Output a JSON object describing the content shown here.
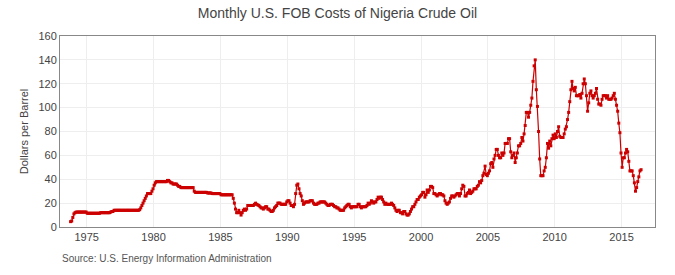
{
  "chart_data": {
    "type": "line",
    "title": "Monthly U.S. FOB Costs of Nigeria Crude Oil",
    "ylabel": "Dollars per Barrel",
    "annotations": [
      "Source: U.S. Energy Information Administration"
    ],
    "color": "#cc0000",
    "marker": "square",
    "line_style": "solid",
    "grid": true,
    "xlim": [
      1973.0,
      2017.5
    ],
    "xticks": [
      1975,
      1980,
      1985,
      1990,
      1995,
      2000,
      2005,
      2010,
      2015
    ],
    "ylim": [
      0,
      160
    ],
    "yticks": [
      0,
      20,
      40,
      60,
      80,
      100,
      120,
      140,
      160
    ],
    "x": [
      1973.791667,
      1973.875,
      1973.958333,
      1974.041667,
      1974.125,
      1974.208333,
      1974.291667,
      1974.375,
      1974.458333,
      1974.541667,
      1974.625,
      1974.708333,
      1974.791667,
      1974.875,
      1974.958333,
      1975.041667,
      1975.125,
      1975.208333,
      1975.291667,
      1975.375,
      1975.458333,
      1975.541667,
      1975.625,
      1975.708333,
      1975.791667,
      1975.875,
      1975.958333,
      1976.041667,
      1976.125,
      1976.208333,
      1976.291667,
      1976.375,
      1976.458333,
      1976.541667,
      1976.625,
      1976.708333,
      1976.791667,
      1976.875,
      1976.958333,
      1977.041667,
      1977.125,
      1977.208333,
      1977.291667,
      1977.375,
      1977.458333,
      1977.541667,
      1977.625,
      1977.708333,
      1977.791667,
      1977.875,
      1977.958333,
      1978.041667,
      1978.125,
      1978.208333,
      1978.291667,
      1978.375,
      1978.458333,
      1978.541667,
      1978.625,
      1978.708333,
      1978.791667,
      1978.875,
      1978.958333,
      1979.041667,
      1979.125,
      1979.208333,
      1979.291667,
      1979.375,
      1979.458333,
      1979.541667,
      1979.625,
      1979.708333,
      1979.791667,
      1979.875,
      1979.958333,
      1980.041667,
      1980.125,
      1980.208333,
      1980.291667,
      1980.375,
      1980.458333,
      1980.541667,
      1980.625,
      1980.708333,
      1980.791667,
      1980.875,
      1980.958333,
      1981.041667,
      1981.125,
      1981.208333,
      1981.291667,
      1981.375,
      1981.458333,
      1981.541667,
      1981.625,
      1981.708333,
      1981.791667,
      1981.875,
      1981.958333,
      1982.041667,
      1982.125,
      1982.208333,
      1982.291667,
      1982.375,
      1982.458333,
      1982.541667,
      1982.625,
      1982.708333,
      1982.791667,
      1982.875,
      1982.958333,
      1983.041667,
      1983.125,
      1983.208333,
      1983.291667,
      1983.375,
      1983.458333,
      1983.541667,
      1983.625,
      1983.708333,
      1983.791667,
      1983.875,
      1983.958333,
      1984.041667,
      1984.125,
      1984.208333,
      1984.291667,
      1984.375,
      1984.458333,
      1984.541667,
      1984.625,
      1984.708333,
      1984.791667,
      1984.875,
      1984.958333,
      1985.041667,
      1985.125,
      1985.208333,
      1985.291667,
      1985.375,
      1985.458333,
      1985.541667,
      1985.625,
      1985.708333,
      1985.791667,
      1985.875,
      1985.958333,
      1986.041667,
      1986.125,
      1986.208333,
      1986.291667,
      1986.375,
      1986.458333,
      1986.541667,
      1986.625,
      1986.708333,
      1986.791667,
      1986.875,
      1986.958333,
      1987.041667,
      1987.125,
      1987.208333,
      1987.291667,
      1987.375,
      1987.458333,
      1987.541667,
      1987.625,
      1987.708333,
      1987.791667,
      1987.875,
      1987.958333,
      1988.041667,
      1988.125,
      1988.208333,
      1988.291667,
      1988.375,
      1988.458333,
      1988.541667,
      1988.625,
      1988.708333,
      1988.791667,
      1988.875,
      1988.958333,
      1989.041667,
      1989.125,
      1989.208333,
      1989.291667,
      1989.375,
      1989.458333,
      1989.541667,
      1989.625,
      1989.708333,
      1989.791667,
      1989.875,
      1989.958333,
      1990.041667,
      1990.125,
      1990.208333,
      1990.291667,
      1990.375,
      1990.458333,
      1990.541667,
      1990.625,
      1990.708333,
      1990.791667,
      1990.875,
      1990.958333,
      1991.041667,
      1991.125,
      1991.208333,
      1991.291667,
      1991.375,
      1991.458333,
      1991.541667,
      1991.625,
      1991.708333,
      1991.791667,
      1991.875,
      1991.958333,
      1992.041667,
      1992.125,
      1992.208333,
      1992.291667,
      1992.375,
      1992.458333,
      1992.541667,
      1992.625,
      1992.708333,
      1992.791667,
      1992.875,
      1992.958333,
      1993.041667,
      1993.125,
      1993.208333,
      1993.291667,
      1993.375,
      1993.458333,
      1993.541667,
      1993.625,
      1993.708333,
      1993.791667,
      1993.875,
      1993.958333,
      1994.041667,
      1994.125,
      1994.208333,
      1994.291667,
      1994.375,
      1994.458333,
      1994.541667,
      1994.625,
      1994.708333,
      1994.791667,
      1994.875,
      1994.958333,
      1995.041667,
      1995.125,
      1995.208333,
      1995.291667,
      1995.375,
      1995.458333,
      1995.541667,
      1995.625,
      1995.708333,
      1995.791667,
      1995.875,
      1995.958333,
      1996.041667,
      1996.125,
      1996.208333,
      1996.291667,
      1996.375,
      1996.458333,
      1996.541667,
      1996.625,
      1996.708333,
      1996.791667,
      1996.875,
      1996.958333,
      1997.041667,
      1997.125,
      1997.208333,
      1997.291667,
      1997.375,
      1997.458333,
      1997.541667,
      1997.625,
      1997.708333,
      1997.791667,
      1997.875,
      1997.958333,
      1998.041667,
      1998.125,
      1998.208333,
      1998.291667,
      1998.375,
      1998.458333,
      1998.541667,
      1998.625,
      1998.708333,
      1998.791667,
      1998.875,
      1998.958333,
      1999.041667,
      1999.125,
      1999.208333,
      1999.291667,
      1999.375,
      1999.458333,
      1999.541667,
      1999.625,
      1999.708333,
      1999.791667,
      1999.875,
      1999.958333,
      2000.041667,
      2000.125,
      2000.208333,
      2000.291667,
      2000.375,
      2000.458333,
      2000.541667,
      2000.625,
      2000.708333,
      2000.791667,
      2000.875,
      2000.958333,
      2001.041667,
      2001.125,
      2001.208333,
      2001.291667,
      2001.375,
      2001.458333,
      2001.541667,
      2001.625,
      2001.708333,
      2001.791667,
      2001.875,
      2001.958333,
      2002.041667,
      2002.125,
      2002.208333,
      2002.291667,
      2002.375,
      2002.458333,
      2002.541667,
      2002.625,
      2002.708333,
      2002.791667,
      2002.875,
      2002.958333,
      2003.041667,
      2003.125,
      2003.208333,
      2003.291667,
      2003.375,
      2003.458333,
      2003.541667,
      2003.625,
      2003.708333,
      2003.791667,
      2003.875,
      2003.958333,
      2004.041667,
      2004.125,
      2004.208333,
      2004.291667,
      2004.375,
      2004.458333,
      2004.541667,
      2004.625,
      2004.708333,
      2004.791667,
      2004.875,
      2004.958333,
      2005.041667,
      2005.125,
      2005.208333,
      2005.291667,
      2005.375,
      2005.458333,
      2005.541667,
      2005.625,
      2005.708333,
      2005.791667,
      2005.875,
      2005.958333,
      2006.041667,
      2006.125,
      2006.208333,
      2006.291667,
      2006.375,
      2006.458333,
      2006.541667,
      2006.625,
      2006.708333,
      2006.791667,
      2006.875,
      2006.958333,
      2007.041667,
      2007.125,
      2007.208333,
      2007.291667,
      2007.375,
      2007.458333,
      2007.541667,
      2007.625,
      2007.708333,
      2007.791667,
      2007.875,
      2007.958333,
      2008.041667,
      2008.125,
      2008.208333,
      2008.291667,
      2008.375,
      2008.458333,
      2008.541667,
      2008.625,
      2008.708333,
      2008.791667,
      2008.875,
      2008.958333,
      2009.041667,
      2009.125,
      2009.208333,
      2009.291667,
      2009.375,
      2009.458333,
      2009.541667,
      2009.625,
      2009.708333,
      2009.791667,
      2009.875,
      2009.958333,
      2010.041667,
      2010.125,
      2010.208333,
      2010.291667,
      2010.375,
      2010.458333,
      2010.541667,
      2010.625,
      2010.708333,
      2010.791667,
      2010.875,
      2010.958333,
      2011.041667,
      2011.125,
      2011.208333,
      2011.291667,
      2011.375,
      2011.458333,
      2011.541667,
      2011.625,
      2011.708333,
      2011.791667,
      2011.875,
      2011.958333,
      2012.041667,
      2012.125,
      2012.208333,
      2012.291667,
      2012.375,
      2012.458333,
      2012.541667,
      2012.625,
      2012.708333,
      2012.791667,
      2012.875,
      2012.958333,
      2013.041667,
      2013.125,
      2013.208333,
      2013.291667,
      2013.375,
      2013.458333,
      2013.541667,
      2013.625,
      2013.708333,
      2013.791667,
      2013.875,
      2013.958333,
      2014.041667,
      2014.125,
      2014.208333,
      2014.291667,
      2014.375,
      2014.458333,
      2014.541667,
      2014.625,
      2014.708333,
      2014.791667,
      2014.875,
      2014.958333,
      2015.041667,
      2015.125,
      2015.208333,
      2015.291667,
      2015.375,
      2015.458333,
      2015.541667,
      2015.625,
      2015.708333,
      2015.791667,
      2015.875,
      2015.958333,
      2016.041667,
      2016.125,
      2016.208333,
      2016.291667,
      2016.375,
      2016.458333
    ],
    "values": [
      4.5,
      5.0,
      8.0,
      11.0,
      12.0,
      12.5,
      12.5,
      12.5,
      12.5,
      12.5,
      12.5,
      12.5,
      12.5,
      12.5,
      12.5,
      11.5,
      11.5,
      11.5,
      11.5,
      11.5,
      11.5,
      11.5,
      11.5,
      11.5,
      11.5,
      11.5,
      11.5,
      12.0,
      12.0,
      12.0,
      12.0,
      12.0,
      12.0,
      12.0,
      12.0,
      12.0,
      12.5,
      13.0,
      13.0,
      14.0,
      14.0,
      14.0,
      14.0,
      14.0,
      14.0,
      14.0,
      14.0,
      14.0,
      14.0,
      14.0,
      14.0,
      14.0,
      14.0,
      14.0,
      14.0,
      14.0,
      14.0,
      14.0,
      14.0,
      14.0,
      14.0,
      14.0,
      14.5,
      16.0,
      18.0,
      20.0,
      22.0,
      24.0,
      26.0,
      28.0,
      28.0,
      28.0,
      28.0,
      30.0,
      32.0,
      35.0,
      37.0,
      38.0,
      38.0,
      38.0,
      38.0,
      38.0,
      38.0,
      38.0,
      38.0,
      38.0,
      38.0,
      39.0,
      39.0,
      38.0,
      37.0,
      37.0,
      36.0,
      36.0,
      36.0,
      36.0,
      35.0,
      34.0,
      34.0,
      33.0,
      33.0,
      33.0,
      33.0,
      33.0,
      33.0,
      33.0,
      33.0,
      33.0,
      33.0,
      33.0,
      33.0,
      30.0,
      29.0,
      29.0,
      29.0,
      29.0,
      29.0,
      29.0,
      29.0,
      29.0,
      29.0,
      29.0,
      29.0,
      28.5,
      28.5,
      28.5,
      28.5,
      28.0,
      28.0,
      28.0,
      28.0,
      28.0,
      28.0,
      28.0,
      28.0,
      27.0,
      27.0,
      27.0,
      27.0,
      27.0,
      27.0,
      27.0,
      27.0,
      27.0,
      27.0,
      27.0,
      24.0,
      20.0,
      15.0,
      12.0,
      12.0,
      14.0,
      12.0,
      10.0,
      12.0,
      14.0,
      15.0,
      14.0,
      15.0,
      18.0,
      18.0,
      18.0,
      18.0,
      18.0,
      18.0,
      19.0,
      20.0,
      19.0,
      18.5,
      18.0,
      17.0,
      16.0,
      16.0,
      15.0,
      16.0,
      17.0,
      17.0,
      15.0,
      15.0,
      14.0,
      13.0,
      13.0,
      14.0,
      16.0,
      17.0,
      18.0,
      20.0,
      20.0,
      20.0,
      19.0,
      19.0,
      19.0,
      19.0,
      19.0,
      21.0,
      22.0,
      22.0,
      20.0,
      18.0,
      18.0,
      17.0,
      19.0,
      28.0,
      35.0,
      36.0,
      32.0,
      28.0,
      26.0,
      22.0,
      19.0,
      20.0,
      21.0,
      21.0,
      21.0,
      21.0,
      22.0,
      22.0,
      22.0,
      20.0,
      19.0,
      19.0,
      19.0,
      20.0,
      20.0,
      21.0,
      21.0,
      21.0,
      21.0,
      21.0,
      20.0,
      19.0,
      18.0,
      18.0,
      19.0,
      19.0,
      19.0,
      18.0,
      17.0,
      17.0,
      16.0,
      16.0,
      15.0,
      14.0,
      14.0,
      14.0,
      14.0,
      16.0,
      17.0,
      18.0,
      19.0,
      19.0,
      17.0,
      16.0,
      17.0,
      17.0,
      17.0,
      17.0,
      17.0,
      19.0,
      19.0,
      17.0,
      16.0,
      17.0,
      17.0,
      17.0,
      17.0,
      18.0,
      20.0,
      19.0,
      20.0,
      22.0,
      21.0,
      20.0,
      21.0,
      21.0,
      23.0,
      25.0,
      24.0,
      25.0,
      25.0,
      23.0,
      21.0,
      19.0,
      20.0,
      19.0,
      19.0,
      19.0,
      19.0,
      20.0,
      19.0,
      18.0,
      16.0,
      14.0,
      13.0,
      14.0,
      14.0,
      12.0,
      12.0,
      11.0,
      13.0,
      13.0,
      11.0,
      10.0,
      10.0,
      11.0,
      13.0,
      15.0,
      17.0,
      17.0,
      19.0,
      21.0,
      23.0,
      23.0,
      25.0,
      26.0,
      27.0,
      29.0,
      29.0,
      25.0,
      27.0,
      31.0,
      29.0,
      31.0,
      34.0,
      34.0,
      33.0,
      28.0,
      28.0,
      27.0,
      26.0,
      27.0,
      28.0,
      28.0,
      27.0,
      27.0,
      26.0,
      22.0,
      20.0,
      19.0,
      20.0,
      21.0,
      24.0,
      26.0,
      26.0,
      25.0,
      26.0,
      27.0,
      28.0,
      28.0,
      26.0,
      28.0,
      32.0,
      35.0,
      34.0,
      26.0,
      26.0,
      28.0,
      29.0,
      31.0,
      28.0,
      29.0,
      30.0,
      32.0,
      32.0,
      32.0,
      34.0,
      35.0,
      38.0,
      37.0,
      39.0,
      43.0,
      45.0,
      51.0,
      44.0,
      43.0,
      45.0,
      47.0,
      53.0,
      54.0,
      50.0,
      57.0,
      60.0,
      65.0,
      65.0,
      60.0,
      58.0,
      58.0,
      62.0,
      60.0,
      62.0,
      70.0,
      70.0,
      70.0,
      74.0,
      74.0,
      63.0,
      58.0,
      60.0,
      62.0,
      54.0,
      58.0,
      62.0,
      68.0,
      68.0,
      70.0,
      75.0,
      72.0,
      78.0,
      85.0,
      96.0,
      96.0,
      92.0,
      96.0,
      102.0,
      108.0,
      122.0,
      135.0,
      140.0,
      115.0,
      101.0,
      80.0,
      57.0,
      43.0,
      43.0,
      43.0,
      47.0,
      50.0,
      58.0,
      70.0,
      66.0,
      72.0,
      68.0,
      74.0,
      77.0,
      74.0,
      78.0,
      75.0,
      80.0,
      84.0,
      76.0,
      75.0,
      75.0,
      75.0,
      78.0,
      82.0,
      84.0,
      90.0,
      96.0,
      105.0,
      115.0,
      122.0,
      116.0,
      114.0,
      117.0,
      110.0,
      110.0,
      110.0,
      111.0,
      108.0,
      112.0,
      120.0,
      124.0,
      120.0,
      110.0,
      97.0,
      104.0,
      112.0,
      114.0,
      110.0,
      108.0,
      110.0,
      112.0,
      116.0,
      107.0,
      103.0,
      103.0,
      102.0,
      107.0,
      110.0,
      110.0,
      110.0,
      108.0,
      110.0,
      107.0,
      107.0,
      107.0,
      108.0,
      110.0,
      112.0,
      107.0,
      102.0,
      97.0,
      87.0,
      79.0,
      62.0,
      50.0,
      58.0,
      58.0,
      62.0,
      65.0,
      63.0,
      55.0,
      47.0,
      47.0,
      47.0,
      43.0,
      37.0,
      30.0,
      33.0,
      38.0,
      42.0,
      47.0,
      48.0
    ]
  }
}
